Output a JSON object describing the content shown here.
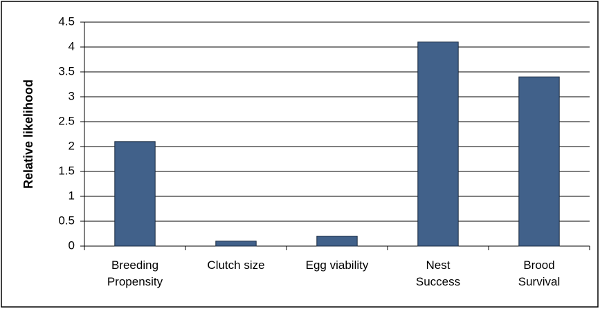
{
  "chart_data": {
    "type": "bar",
    "y_label": "Relative likelihood",
    "categories": [
      "Breeding\nPropensity",
      "Clutch size",
      "Egg viability",
      "Nest\nSuccess",
      "Brood\nSurvival"
    ],
    "values": [
      2.1,
      0.1,
      0.2,
      4.1,
      3.4
    ],
    "color": "#41618a",
    "ylim": [
      0,
      4.5
    ],
    "yticks": [
      0,
      0.5,
      1,
      1.5,
      2,
      2.5,
      3,
      3.5,
      4,
      4.5
    ],
    "grid": true
  }
}
